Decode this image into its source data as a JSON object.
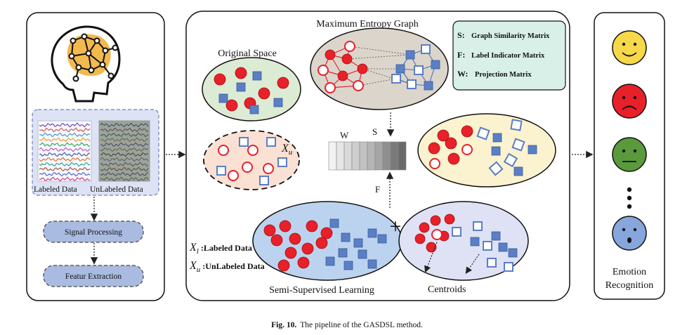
{
  "left_panel": {
    "labeled_data_label": "Labeled Data",
    "unlabeled_data_label": "UnLabeled Data",
    "signal_processing_label": "Signal Processing",
    "feature_extraction_label": "Featur Extraction"
  },
  "center_panel": {
    "title": "Maximum Entropy Graph",
    "original_space_label": "Original Space",
    "xu_symbol": "X",
    "xu_sub": "u",
    "w_label": "W",
    "s_label": "S",
    "f_label": "F",
    "plus_symbol": "+",
    "semi_supervised_label": "Semi-Supervised Learning",
    "centroids_label": "Centroids",
    "legend_items": [
      {
        "key": "S:",
        "text": "Graph Similarity Matrix"
      },
      {
        "key": "F:",
        "text": "Label Indicator Matrix"
      },
      {
        "key": "W:",
        "text": "Projection Matrix"
      }
    ],
    "bottom_legend": [
      {
        "symbol": "X",
        "sub": "l",
        "text": ":Labeled Data"
      },
      {
        "symbol": "X",
        "sub": "u",
        "text": ":UnLabeled Data"
      }
    ]
  },
  "right_panel": {
    "label_line1": "Emotion",
    "label_line2": "Recognition"
  },
  "caption": {
    "prefix": "Fig. 10.",
    "text": "The pipeline of the GASDSL method."
  },
  "colors": {
    "red": "#e8202a",
    "blue_square": "#5a7fc4",
    "green_ellipse": "#dcebd3",
    "peach_ellipse": "#fbe1d3",
    "yellow_ellipse": "#fbf2cf",
    "blue_ellipse": "#bcd3ef",
    "lavender_ellipse": "#dfe2f5",
    "legend_box": "#d8f0e8",
    "face_yellow": "#f6d84a",
    "face_red": "#e8202a",
    "face_green": "#5a9a3a",
    "face_blue": "#86a6dc"
  }
}
